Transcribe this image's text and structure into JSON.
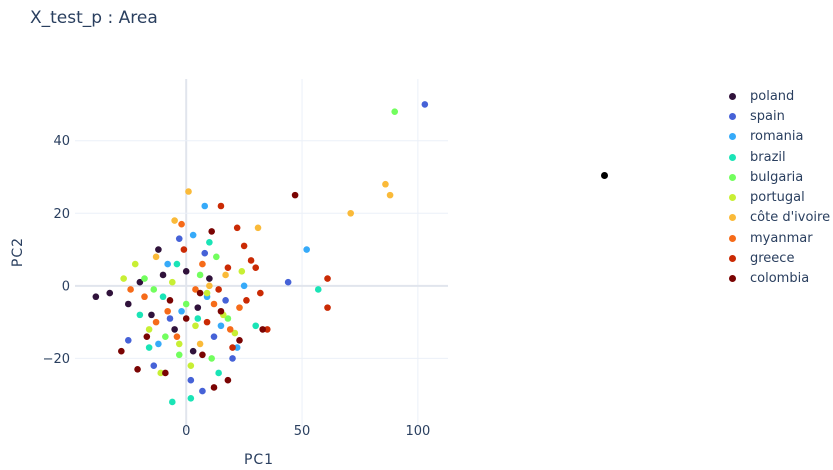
{
  "title": "X_test_p : Area",
  "chart_data": {
    "type": "scatter",
    "xlabel": "PC1",
    "ylabel": "PC2",
    "xlim": [
      -48,
      113
    ],
    "ylim": [
      -40,
      57
    ],
    "xticks": [
      0,
      50,
      100
    ],
    "xtick_labels": [
      "0",
      "50",
      "100"
    ],
    "yticks": [
      -20,
      0,
      20,
      40
    ],
    "ytick_labels": [
      "−20",
      "0",
      "20",
      "40"
    ],
    "grid": true,
    "legend_position": "right",
    "series": [
      {
        "name": "poland",
        "color": "#30123b",
        "points": [
          [
            -39,
            -3
          ],
          [
            -33,
            -2
          ],
          [
            -25,
            -5
          ],
          [
            -20,
            1
          ],
          [
            -15,
            -8
          ],
          [
            -10,
            3
          ],
          [
            -5,
            -12
          ],
          [
            0,
            4
          ],
          [
            5,
            -6
          ],
          [
            10,
            2
          ],
          [
            -12,
            10
          ],
          [
            3,
            -18
          ]
        ]
      },
      {
        "name": "spain",
        "color": "#4662d7",
        "points": [
          [
            103,
            50
          ],
          [
            44,
            1
          ],
          [
            -25,
            -15
          ],
          [
            -14,
            -22
          ],
          [
            -7,
            -9
          ],
          [
            2,
            -26
          ],
          [
            7,
            -29
          ],
          [
            12,
            -14
          ],
          [
            17,
            -4
          ],
          [
            -3,
            13
          ],
          [
            8,
            9
          ],
          [
            20,
            -20
          ]
        ]
      },
      {
        "name": "romania",
        "color": "#36aaf9",
        "points": [
          [
            52,
            10
          ],
          [
            8,
            22
          ],
          [
            -12,
            -16
          ],
          [
            -2,
            -7
          ],
          [
            9,
            -3
          ],
          [
            15,
            -11
          ],
          [
            -8,
            6
          ],
          [
            3,
            14
          ],
          [
            22,
            -17
          ],
          [
            25,
            0
          ]
        ]
      },
      {
        "name": "brazil",
        "color": "#1ae4b6",
        "points": [
          [
            57,
            -1
          ],
          [
            -6,
            -32
          ],
          [
            2,
            -31
          ],
          [
            -16,
            -17
          ],
          [
            -10,
            -3
          ],
          [
            5,
            -9
          ],
          [
            14,
            -24
          ],
          [
            -4,
            6
          ],
          [
            10,
            12
          ],
          [
            30,
            -11
          ],
          [
            -20,
            -8
          ]
        ]
      },
      {
        "name": "bulgaria",
        "color": "#72fe5e",
        "points": [
          [
            90,
            48
          ],
          [
            -18,
            2
          ],
          [
            -9,
            -14
          ],
          [
            0,
            -5
          ],
          [
            6,
            3
          ],
          [
            11,
            -20
          ],
          [
            18,
            -9
          ],
          [
            -3,
            -19
          ],
          [
            13,
            8
          ],
          [
            -14,
            -1
          ]
        ]
      },
      {
        "name": "portugal",
        "color": "#c8ef34",
        "points": [
          [
            -22,
            6
          ],
          [
            -27,
            2
          ],
          [
            -11,
            -24
          ],
          [
            -3,
            -16
          ],
          [
            4,
            -11
          ],
          [
            9,
            -2
          ],
          [
            16,
            -8
          ],
          [
            21,
            -13
          ],
          [
            -6,
            1
          ],
          [
            2,
            -22
          ],
          [
            24,
            4
          ],
          [
            -16,
            -12
          ]
        ]
      },
      {
        "name": "côte d'ivoire",
        "color": "#faba39",
        "points": [
          [
            86,
            28
          ],
          [
            88,
            25
          ],
          [
            71,
            20
          ],
          [
            31,
            16
          ],
          [
            1,
            26
          ],
          [
            -5,
            18
          ],
          [
            10,
            0
          ],
          [
            -13,
            8
          ],
          [
            6,
            -16
          ],
          [
            17,
            3
          ]
        ]
      },
      {
        "name": "myanmar",
        "color": "#f66b19",
        "points": [
          [
            -18,
            -3
          ],
          [
            -8,
            -7
          ],
          [
            -2,
            17
          ],
          [
            4,
            -1
          ],
          [
            12,
            -5
          ],
          [
            19,
            -12
          ],
          [
            -13,
            -10
          ],
          [
            7,
            6
          ],
          [
            -4,
            -14
          ],
          [
            23,
            -6
          ],
          [
            -24,
            -1
          ]
        ]
      },
      {
        "name": "greece",
        "color": "#ca2a04",
        "points": [
          [
            61,
            2
          ],
          [
            61,
            -6
          ],
          [
            15,
            22
          ],
          [
            22,
            16
          ],
          [
            25,
            11
          ],
          [
            28,
            7
          ],
          [
            32,
            -2
          ],
          [
            35,
            -12
          ],
          [
            20,
            -17
          ],
          [
            9,
            -10
          ],
          [
            14,
            -1
          ],
          [
            -1,
            10
          ],
          [
            26,
            -4
          ],
          [
            18,
            5
          ],
          [
            30,
            5
          ]
        ]
      },
      {
        "name": "colombia",
        "color": "#7a0403",
        "points": [
          [
            47,
            25
          ],
          [
            -21,
            -23
          ],
          [
            -28,
            -18
          ],
          [
            -17,
            -14
          ],
          [
            -7,
            -4
          ],
          [
            0,
            -9
          ],
          [
            7,
            -19
          ],
          [
            12,
            -28
          ],
          [
            18,
            -26
          ],
          [
            23,
            -15
          ],
          [
            6,
            -2
          ],
          [
            11,
            15
          ],
          [
            -9,
            -24
          ],
          [
            15,
            -7
          ],
          [
            33,
            -12
          ]
        ]
      }
    ]
  }
}
